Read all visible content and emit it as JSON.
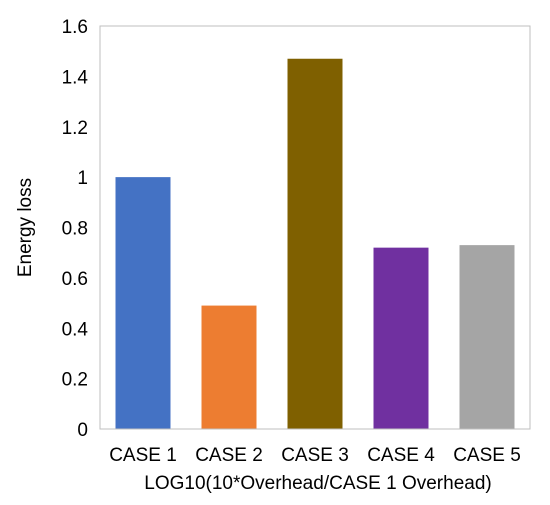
{
  "chart_data": {
    "type": "bar",
    "categories": [
      "CASE 1",
      "CASE 2",
      "CASE 3",
      "CASE 4",
      "CASE 5"
    ],
    "values": [
      1.0,
      0.49,
      1.47,
      0.72,
      0.73
    ],
    "colors": [
      "#4472c4",
      "#ed7d31",
      "#7f6000",
      "#7030a0",
      "#a5a5a5"
    ],
    "title": "",
    "xlabel": "LOG10(10*Overhead/CASE 1 Overhead)",
    "ylabel": "Energy loss",
    "ylim": [
      0,
      1.6
    ],
    "yticks": [
      "0",
      "0.2",
      "0.4",
      "0.6",
      "0.8",
      "1",
      "1.2",
      "1.4",
      "1.6"
    ],
    "grid": false,
    "legend": "none"
  }
}
